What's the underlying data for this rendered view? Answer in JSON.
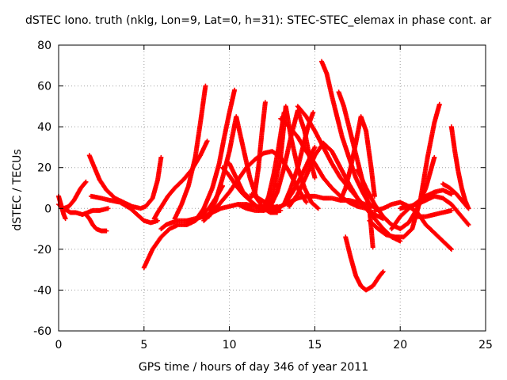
{
  "chart_data": {
    "type": "scatter",
    "title": "dSTEC Iono. truth (nklg, Lon=9, Lat=0, h=31): STEC-STEC_elemax in phase cont. ar",
    "xlabel": "GPS time / hours of day 346 of year 2011",
    "ylabel": "dSTEC  / TECUs",
    "xlim": [
      0,
      25
    ],
    "ylim": [
      -60,
      80
    ],
    "xticks": [
      "0",
      "5",
      "10",
      "15",
      "20",
      "25"
    ],
    "yticks": [
      "-60",
      "-40",
      "-20",
      "0",
      "20",
      "40",
      "60",
      "80"
    ],
    "grid": true,
    "marker_color": "#ff0000",
    "series": [
      {
        "x": [
          0.0,
          0.1,
          0.2,
          0.3,
          0.4
        ],
        "y": [
          6,
          3,
          0,
          -3,
          -5
        ]
      },
      {
        "x": [
          0.0,
          0.3,
          0.6,
          0.9,
          1.1,
          1.3,
          1.6
        ],
        "y": [
          2,
          0,
          1,
          4,
          7,
          10,
          13
        ]
      },
      {
        "x": [
          0.3,
          0.7,
          1.0,
          1.4,
          1.7,
          2.0,
          2.4,
          2.9
        ],
        "y": [
          0,
          -2,
          -2,
          -3,
          -2,
          -1,
          -1,
          0
        ]
      },
      {
        "x": [
          1.6,
          1.8,
          2.0,
          2.2,
          2.5,
          2.8
        ],
        "y": [
          -3,
          -5,
          -8,
          -10,
          -11,
          -11
        ]
      },
      {
        "x": [
          1.8,
          2.1,
          2.4,
          2.8,
          3.3,
          3.8,
          4.3,
          4.8,
          5.1,
          5.5,
          5.8,
          6.0
        ],
        "y": [
          26,
          20,
          14,
          9,
          5,
          3,
          1,
          0,
          1,
          5,
          14,
          25
        ]
      },
      {
        "x": [
          1.9,
          2.5,
          3.0,
          3.6,
          4.2,
          4.6,
          5.0,
          5.4,
          5.8
        ],
        "y": [
          6,
          5,
          4,
          3,
          0,
          -3,
          -6,
          -7,
          -6
        ]
      },
      {
        "x": [
          5.0,
          5.5,
          6.0,
          6.5,
          7.0,
          7.5,
          8.0,
          8.4,
          8.8,
          9.2,
          9.6
        ],
        "y": [
          -29,
          -20,
          -14,
          -10,
          -8,
          -8,
          -6,
          -3,
          0,
          5,
          11
        ]
      },
      {
        "x": [
          5.6,
          5.8,
          6.1,
          6.4,
          6.8,
          7.3,
          7.8,
          8.3,
          8.7
        ],
        "y": [
          -5,
          -2,
          2,
          6,
          10,
          14,
          19,
          26,
          33
        ]
      },
      {
        "x": [
          6.0,
          6.3,
          6.6,
          7.0,
          7.5,
          8.0,
          8.5,
          9.0,
          9.5,
          10.0,
          10.5,
          11.0,
          11.5,
          12.0,
          12.5,
          13.0
        ],
        "y": [
          -10,
          -8,
          -7,
          -6,
          -6,
          -5,
          -4,
          -2,
          0,
          1,
          2,
          2,
          1,
          0,
          -1,
          -1
        ]
      },
      {
        "x": [
          6.8,
          7.2,
          7.6,
          8.0,
          8.3,
          8.6
        ],
        "y": [
          -5,
          2,
          11,
          25,
          42,
          60
        ]
      },
      {
        "x": [
          7.5,
          8.0,
          8.5,
          9.0,
          9.4,
          9.7,
          10.0,
          10.3
        ],
        "y": [
          -8,
          -6,
          0,
          10,
          22,
          35,
          47,
          58
        ]
      },
      {
        "x": [
          8.5,
          9.0,
          9.5,
          10.0,
          10.5,
          11.0,
          11.5,
          12.0,
          12.5,
          13.0,
          13.5,
          14.0,
          14.5
        ],
        "y": [
          -6,
          -2,
          3,
          8,
          14,
          20,
          24,
          27,
          28,
          25,
          18,
          10,
          3
        ]
      },
      {
        "x": [
          8.8,
          9.2,
          9.6,
          10.0,
          10.4,
          10.8,
          11.2,
          11.6,
          12.0,
          12.4,
          12.8
        ],
        "y": [
          -4,
          4,
          15,
          28,
          45,
          30,
          15,
          5,
          0,
          -2,
          -2
        ]
      },
      {
        "x": [
          9.6,
          10.0,
          10.4,
          10.8,
          11.2,
          11.6,
          12.0,
          12.4,
          12.8
        ],
        "y": [
          20,
          16,
          11,
          7,
          4,
          1,
          0,
          0,
          1
        ]
      },
      {
        "x": [
          10.0,
          10.4,
          10.8,
          11.2,
          11.5,
          11.7,
          11.9,
          12.1
        ],
        "y": [
          22,
          15,
          8,
          5,
          8,
          20,
          37,
          52
        ]
      },
      {
        "x": [
          10.5,
          11.0,
          11.5,
          12.0,
          12.5,
          13.0,
          13.5,
          14.0,
          14.5,
          15.0,
          15.5,
          16.0,
          16.5,
          17.0,
          17.5,
          18.0
        ],
        "y": [
          2,
          0,
          -1,
          -1,
          0,
          1,
          3,
          5,
          6,
          6,
          5,
          5,
          4,
          4,
          3,
          2
        ]
      },
      {
        "x": [
          11.3,
          11.7,
          12.1,
          12.5,
          12.9,
          13.3,
          13.7,
          14.1,
          14.5,
          15.0
        ],
        "y": [
          7,
          5,
          3,
          1,
          0,
          3,
          8,
          14,
          21,
          30
        ]
      },
      {
        "x": [
          11.7,
          12.0,
          12.3,
          12.6,
          12.9,
          13.2
        ],
        "y": [
          -1,
          0,
          6,
          17,
          31,
          47
        ]
      },
      {
        "x": [
          12.0,
          12.5,
          13.0,
          13.3,
          13.6,
          14.0,
          14.4,
          14.8,
          15.2
        ],
        "y": [
          -1,
          5,
          25,
          50,
          35,
          20,
          10,
          3,
          0
        ]
      },
      {
        "x": [
          12.4,
          12.8,
          13.2,
          13.6,
          14.0,
          14.4,
          14.7,
          15.0
        ],
        "y": [
          1,
          8,
          20,
          35,
          48,
          38,
          25,
          15
        ]
      },
      {
        "x": [
          13.0,
          13.5,
          14.0,
          14.5,
          15.0,
          15.5,
          16.0,
          16.5,
          17.0,
          17.5,
          18.0
        ],
        "y": [
          44,
          40,
          35,
          28,
          22,
          15,
          10,
          6,
          3,
          1,
          0
        ]
      },
      {
        "x": [
          13.5,
          14.0,
          14.5,
          15.0,
          15.5,
          16.0,
          16.5,
          17.0,
          17.5,
          18.0,
          18.5,
          19.0
        ],
        "y": [
          1,
          7,
          16,
          26,
          32,
          28,
          20,
          12,
          5,
          0,
          -3,
          -5
        ]
      },
      {
        "x": [
          13.2,
          13.6,
          14.0,
          14.3,
          14.6,
          14.9
        ],
        "y": [
          2,
          10,
          20,
          30,
          40,
          47
        ]
      },
      {
        "x": [
          14.0,
          14.5,
          15.0,
          15.5,
          16.0,
          16.5,
          17.0,
          17.5,
          18.0,
          18.5,
          19.0,
          19.5,
          20.0
        ],
        "y": [
          50,
          45,
          38,
          30,
          22,
          15,
          10,
          5,
          0,
          -5,
          -10,
          -14,
          -16
        ]
      },
      {
        "x": [
          15.4,
          15.7,
          16.0,
          16.3,
          16.6,
          17.0,
          17.4,
          17.8,
          18.2,
          18.6
        ],
        "y": [
          72,
          66,
          55,
          45,
          35,
          25,
          15,
          8,
          2,
          0
        ]
      },
      {
        "x": [
          16.5,
          16.8,
          17.1,
          17.4,
          17.7,
          18.0,
          18.3,
          18.5
        ],
        "y": [
          4,
          10,
          20,
          32,
          45,
          38,
          20,
          6
        ]
      },
      {
        "x": [
          16.4,
          16.7,
          17.0,
          17.3,
          17.6,
          17.9,
          18.2,
          18.4
        ],
        "y": [
          57,
          50,
          40,
          30,
          20,
          10,
          0,
          -19
        ]
      },
      {
        "x": [
          16.8,
          17.1,
          17.4,
          17.7,
          18.0,
          18.4,
          18.8,
          19.0
        ],
        "y": [
          -14,
          -24,
          -33,
          -38,
          -40,
          -38,
          -33,
          -31
        ]
      },
      {
        "x": [
          17.5,
          18.0,
          18.5,
          19.0,
          19.5,
          20.0,
          20.5,
          21.0,
          21.5,
          22.0
        ],
        "y": [
          19,
          10,
          2,
          -4,
          -8,
          -10,
          -7,
          0,
          10,
          25
        ]
      },
      {
        "x": [
          18.2,
          18.7,
          19.2,
          19.7,
          20.2,
          20.7,
          21.2,
          21.6,
          22.0,
          22.3
        ],
        "y": [
          -6,
          -10,
          -13,
          -14,
          -14,
          -10,
          5,
          25,
          42,
          51
        ]
      },
      {
        "x": [
          18.5,
          19.0,
          19.5,
          20.0,
          20.5,
          21.0,
          21.5,
          22.0,
          22.5,
          23.0
        ],
        "y": [
          -1,
          0,
          2,
          3,
          1,
          -2,
          -8,
          -12,
          -16,
          -20
        ]
      },
      {
        "x": [
          19.5,
          20.0,
          20.5,
          21.0,
          21.5,
          22.0,
          22.5,
          23.0
        ],
        "y": [
          -10,
          -4,
          0,
          3,
          6,
          8,
          9,
          7
        ]
      },
      {
        "x": [
          20.0,
          20.5,
          21.0,
          21.5,
          22.0,
          22.5,
          23.0,
          23.5,
          24.0
        ],
        "y": [
          0,
          1,
          2,
          4,
          6,
          5,
          2,
          -3,
          -8
        ]
      },
      {
        "x": [
          22.5,
          22.9,
          23.3,
          23.7,
          24.0
        ],
        "y": [
          12,
          10,
          7,
          3,
          0
        ]
      },
      {
        "x": [
          23.0,
          23.2,
          23.4,
          23.6,
          23.8,
          24.0
        ],
        "y": [
          40,
          28,
          18,
          10,
          4,
          0
        ]
      },
      {
        "x": [
          21.0,
          21.5,
          22.0,
          22.5,
          23.0
        ],
        "y": [
          -4,
          -4,
          -3,
          -2,
          -1
        ]
      }
    ]
  }
}
